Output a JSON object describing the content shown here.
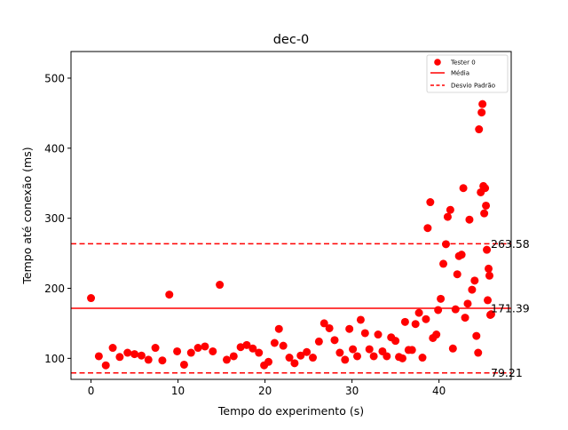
{
  "chart_data": {
    "type": "scatter",
    "title": "dec-0",
    "xlabel": "Tempo do experimento (s)",
    "ylabel": "Tempo até conexão (ms)",
    "xlim": [
      -2.3,
      48.3
    ],
    "ylim": [
      70,
      538
    ],
    "xticks": [
      0,
      10,
      20,
      30,
      40
    ],
    "yticks": [
      100,
      200,
      300,
      400,
      500
    ],
    "grid": false,
    "legend_position": "top-right",
    "legend": {
      "scatter": "Tester 0",
      "mean": "Média",
      "std": "Desvio Padrão"
    },
    "colors": {
      "points": "#ff0000",
      "lines": "#ff0000"
    },
    "reference_lines": [
      {
        "name": "Média",
        "value": 171.39,
        "label": "171.39",
        "style": "solid"
      },
      {
        "name": "Desvio Padrão",
        "value": 263.58,
        "label": "263.58",
        "style": "dashed"
      },
      {
        "name": "Desvio Padrão",
        "value": 79.21,
        "label": "79.21",
        "style": "dashed"
      }
    ],
    "series": [
      {
        "name": "Tester 0",
        "x": [
          0.0,
          0.9,
          1.7,
          2.5,
          3.3,
          4.2,
          5.0,
          5.8,
          6.6,
          7.4,
          8.2,
          9.0,
          9.9,
          10.7,
          11.5,
          12.3,
          13.1,
          14.0,
          14.8,
          15.6,
          16.4,
          17.2,
          17.9,
          18.6,
          19.3,
          19.9,
          20.4,
          21.1,
          21.6,
          22.1,
          22.8,
          23.4,
          24.1,
          24.8,
          25.5,
          26.2,
          26.8,
          27.4,
          28.0,
          28.6,
          29.2,
          29.7,
          30.1,
          30.6,
          31.0,
          31.5,
          32.0,
          32.5,
          33.0,
          33.5,
          34.0,
          34.5,
          35.0,
          35.4,
          35.8,
          36.1,
          36.5,
          36.9,
          37.3,
          37.7,
          38.1,
          38.5,
          38.7,
          39.0,
          39.3,
          39.7,
          39.9,
          40.2,
          40.5,
          40.8,
          41.0,
          41.3,
          41.6,
          41.9,
          42.1,
          42.3,
          42.6,
          42.8,
          43.0,
          43.3,
          43.5,
          43.8,
          44.1,
          44.3,
          44.5,
          44.6,
          44.8,
          44.9,
          45.0,
          45.1,
          45.2,
          45.3,
          45.4,
          45.5,
          45.6,
          45.7,
          45.8,
          45.9,
          46.0
        ],
        "y": [
          186,
          103,
          90,
          115,
          102,
          108,
          106,
          104,
          98,
          115,
          97,
          191,
          110,
          91,
          108,
          115,
          117,
          110,
          205,
          98,
          103,
          116,
          119,
          114,
          108,
          90,
          95,
          122,
          142,
          118,
          101,
          93,
          104,
          109,
          101,
          124,
          150,
          143,
          126,
          108,
          98,
          142,
          113,
          103,
          155,
          136,
          113,
          103,
          134,
          110,
          103,
          130,
          125,
          102,
          100,
          152,
          112,
          112,
          149,
          165,
          101,
          156,
          286,
          323,
          129,
          134,
          169,
          185,
          235,
          263,
          302,
          312,
          114,
          170,
          220,
          246,
          248,
          343,
          158,
          178,
          298,
          198,
          211,
          132,
          108,
          427,
          337,
          451,
          463,
          346,
          307,
          343,
          318,
          255,
          183,
          228,
          218,
          162,
          163
        ]
      }
    ]
  }
}
